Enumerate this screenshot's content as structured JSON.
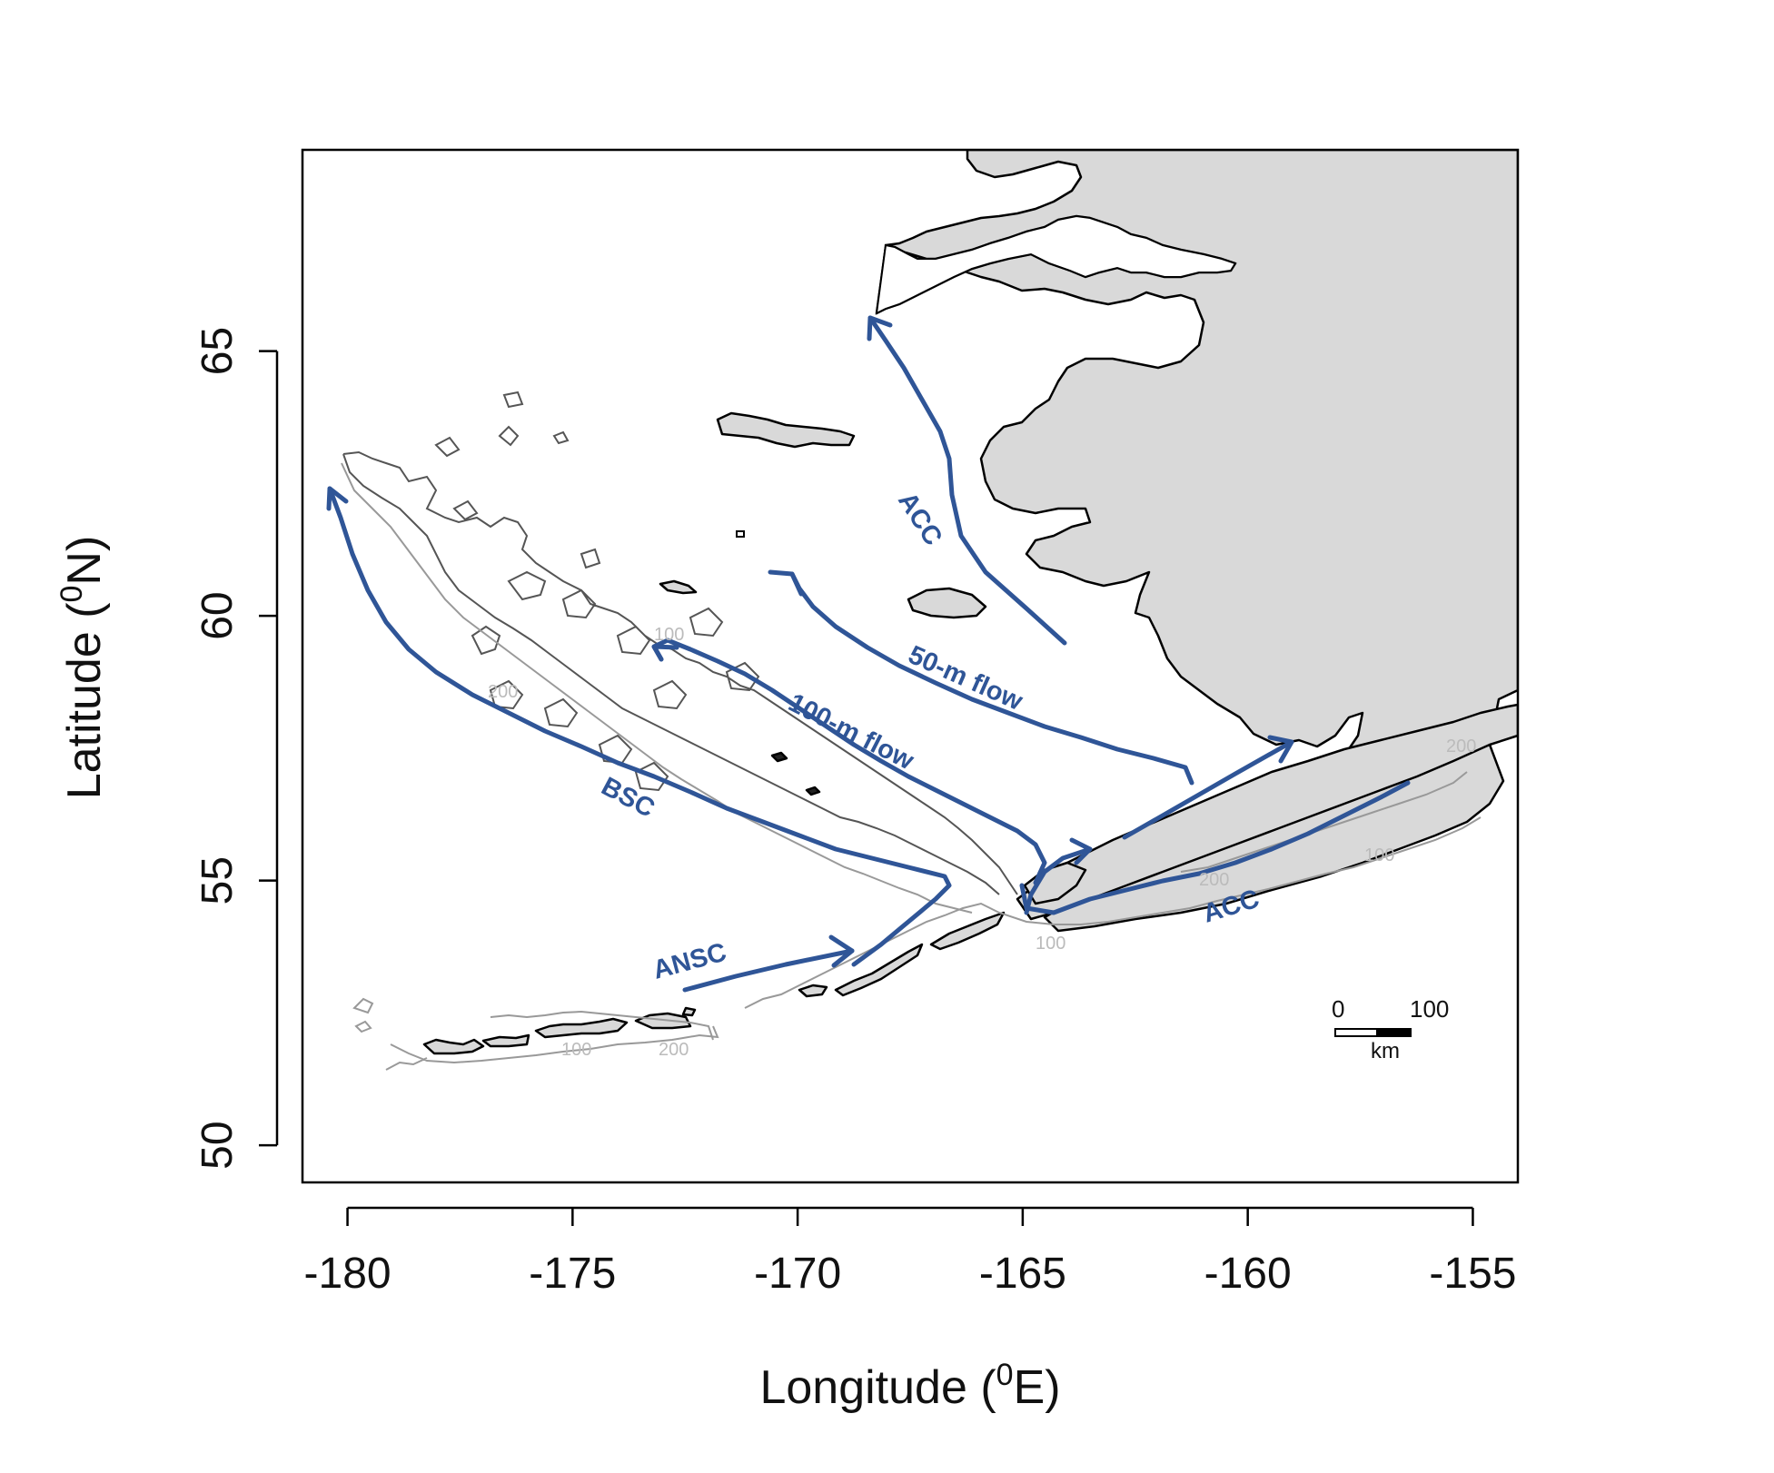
{
  "map": {
    "colors": {
      "current": "#2f5597",
      "land": "#d9d9d9",
      "frame": "#000000",
      "contour_100": "#555555",
      "contour_200": "#999999"
    },
    "x_axis": {
      "title": "Longitude (",
      "title_sup": "0",
      "title_end": "E)",
      "range": [
        -181,
        -154
      ],
      "ticks": [
        {
          "value": -180,
          "label": "-180"
        },
        {
          "value": -175,
          "label": "-175"
        },
        {
          "value": -170,
          "label": "-170"
        },
        {
          "value": -165,
          "label": "-165"
        },
        {
          "value": -160,
          "label": "-160"
        },
        {
          "value": -155,
          "label": "-155"
        }
      ]
    },
    "y_axis": {
      "title": "Latitude (",
      "title_sup": "0",
      "title_end": "N)",
      "range": [
        49.3,
        68.8
      ],
      "ticks": [
        {
          "value": 50,
          "label": "50"
        },
        {
          "value": 55,
          "label": "55"
        },
        {
          "value": 60,
          "label": "60"
        },
        {
          "value": 65,
          "label": "65"
        }
      ]
    },
    "currents": [
      {
        "id": "acc-north",
        "label": "ACC"
      },
      {
        "id": "flow-50m",
        "label": "50-m flow"
      },
      {
        "id": "flow-100m",
        "label": "100-m flow"
      },
      {
        "id": "bsc",
        "label": "BSC"
      },
      {
        "id": "ansc",
        "label": "ANSC"
      },
      {
        "id": "acc-south",
        "label": "ACC"
      }
    ],
    "contour_labels": [
      {
        "id": "c1",
        "text": "100"
      },
      {
        "id": "c2",
        "text": "200"
      },
      {
        "id": "c3",
        "text": "100"
      },
      {
        "id": "c4",
        "text": "200"
      },
      {
        "id": "c5",
        "text": "100"
      },
      {
        "id": "c6",
        "text": "200"
      },
      {
        "id": "c7",
        "text": "100"
      },
      {
        "id": "c8",
        "text": "200"
      }
    ],
    "scale_bar": {
      "start_label": "0",
      "end_label": "100",
      "unit": "km"
    }
  }
}
